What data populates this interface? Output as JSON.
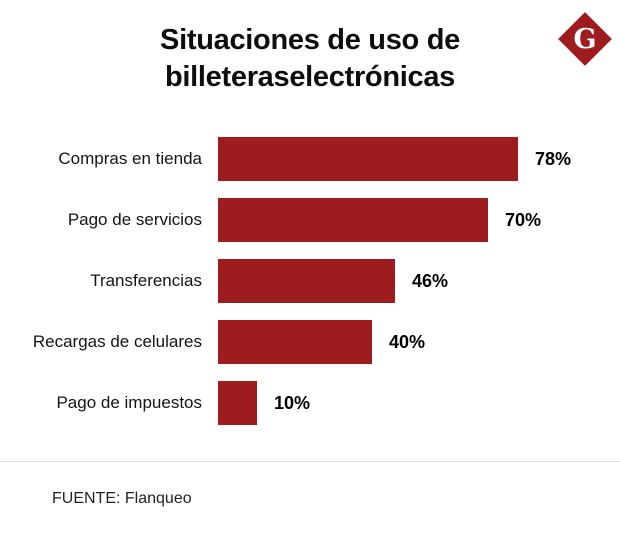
{
  "title_line1": "Situaciones de uso de",
  "title_line2": "billeteraselectrónicas",
  "logo": {
    "letter": "G"
  },
  "footer": {
    "source_label": "FUENTE: Flanqueo"
  },
  "colors": {
    "bar": "#9E1B1E",
    "logo": "#9E1B1E"
  },
  "chart_data": {
    "type": "bar",
    "orientation": "horizontal",
    "title": "Situaciones de uso de billeteraselectrónicas",
    "categories": [
      "Compras en tienda",
      "Pago de servicios",
      "Transferencias",
      "Recargas de celulares",
      "Pago de impuestos"
    ],
    "values": [
      78,
      70,
      46,
      40,
      10
    ],
    "value_suffix": "%",
    "xlim": [
      0,
      100
    ],
    "grid": false,
    "legend": false,
    "source": "FUENTE: Flanqueo"
  }
}
